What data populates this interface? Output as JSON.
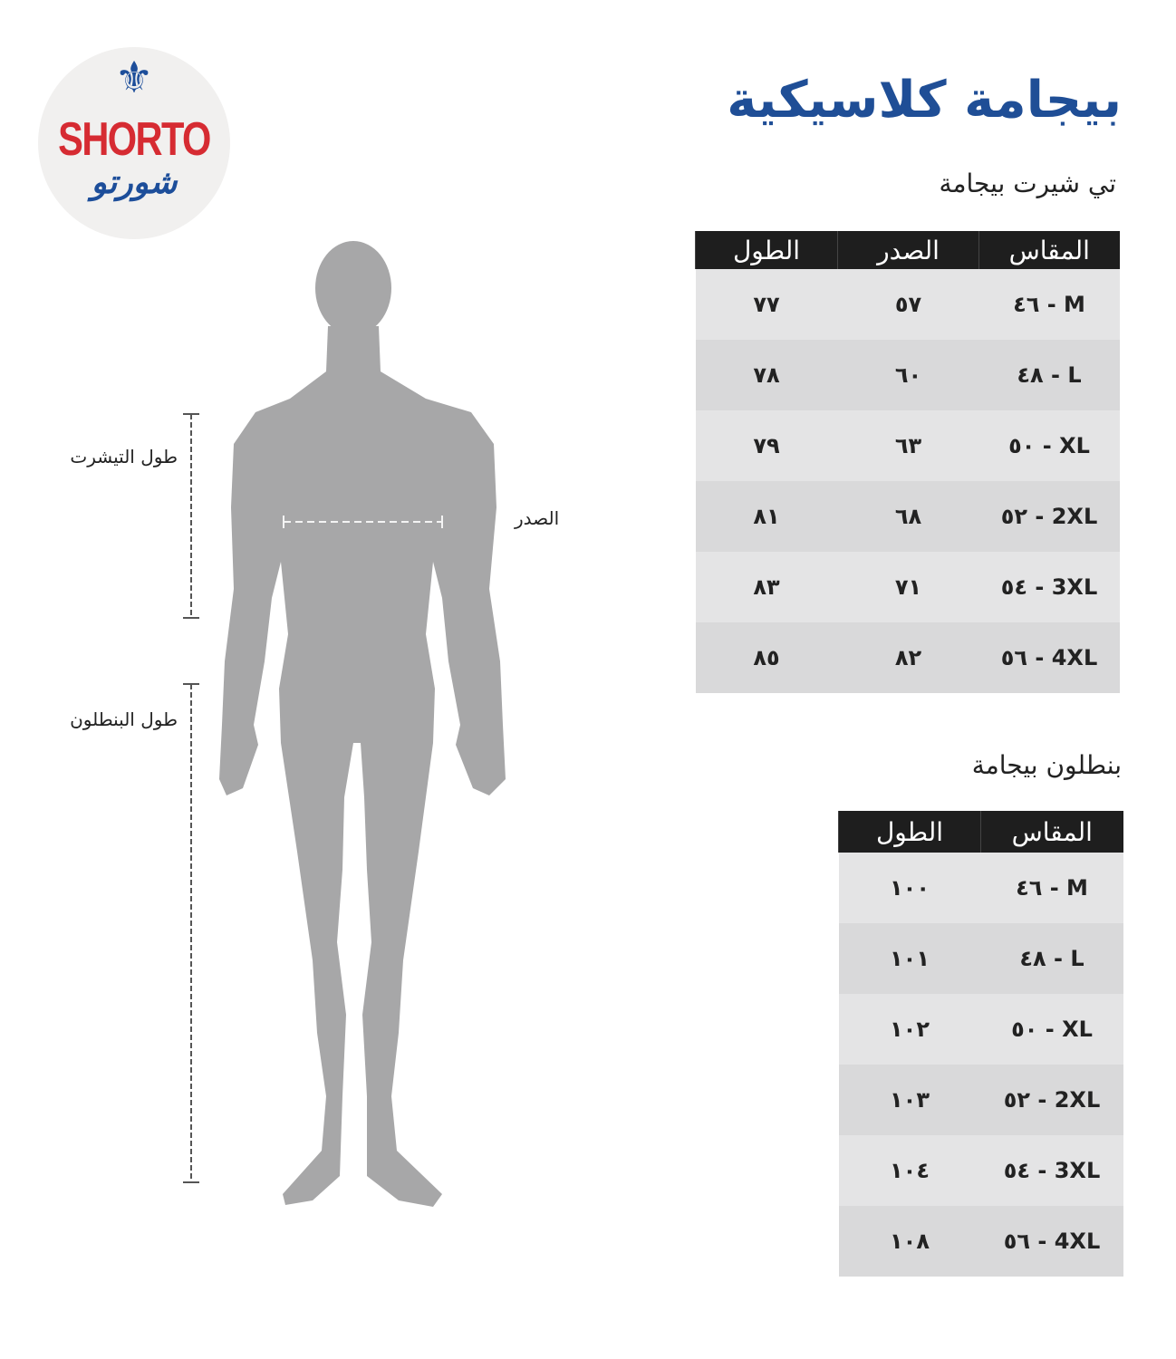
{
  "brand": {
    "name_en": "SHORTO",
    "name_ar": "شورتو",
    "colors": {
      "red": "#d62b32",
      "blue": "#1d4e9a"
    }
  },
  "title": "بيجامة كلاسيكية",
  "shirt": {
    "subtitle": "تي شيرت بيجامة",
    "headers": [
      "المقاس",
      "الصدر",
      "الطول"
    ],
    "rows": [
      [
        "٤٦ - M",
        "٥٧",
        "٧٧"
      ],
      [
        "٤٨ - L",
        "٦٠",
        "٧٨"
      ],
      [
        "٥٠ - XL",
        "٦٣",
        "٧٩"
      ],
      [
        "٥٢ - 2XL",
        "٦٨",
        "٨١"
      ],
      [
        "٥٤ - 3XL",
        "٧١",
        "٨٣"
      ],
      [
        "٥٦ - 4XL",
        "٨٢",
        "٨٥"
      ]
    ]
  },
  "pants": {
    "subtitle": "بنطلون بيجامة",
    "headers": [
      "المقاس",
      "الطول"
    ],
    "rows": [
      [
        "٤٦ - M",
        "١٠٠"
      ],
      [
        "٤٨ - L",
        "١٠١"
      ],
      [
        "٥٠ - XL",
        "١٠٢"
      ],
      [
        "٥٢ - 2XL",
        "١٠٣"
      ],
      [
        "٥٤ - 3XL",
        "١٠٤"
      ],
      [
        "٥٦ - 4XL",
        "١٠٨"
      ]
    ]
  },
  "figure": {
    "shirt_length_label": "طول التيشرت",
    "chest_label": "الصدر",
    "pants_length_label": "طول البنطلون"
  }
}
